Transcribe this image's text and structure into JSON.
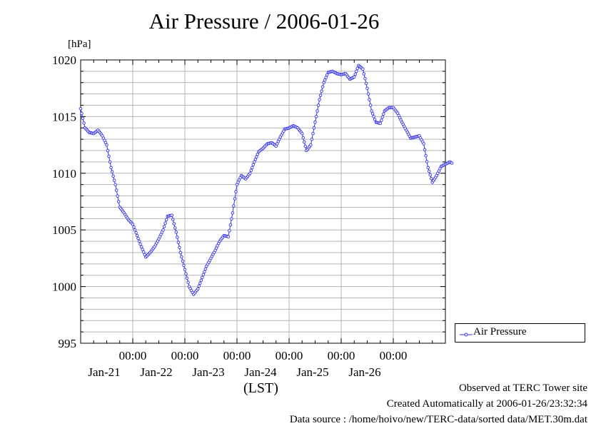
{
  "title": "Air Pressure / 2006-01-26",
  "y_unit": "[hPa]",
  "x_axis_label": "(LST)",
  "footer": {
    "line1": "Observed at TERC Tower site",
    "line2": "Created Automatically at 2006-01-26/23:32:34",
    "line3": "Data source : /home/hoivo/new/TERC-data/sorted  data/MET.30m.dat"
  },
  "legend": {
    "label": "Air Pressure"
  },
  "colors": {
    "series": "#3333ee",
    "grid": "#b4b4b4",
    "axis": "#000000"
  },
  "chart_data": {
    "type": "line",
    "title": "Air Pressure / 2006-01-26",
    "ylabel": "[hPa]",
    "xlabel": "(LST)",
    "ylim": [
      995,
      1020
    ],
    "xlim": [
      "2006-01-20 00:00",
      "2006-01-26 24:00"
    ],
    "yticks": [
      995,
      1000,
      1005,
      1010,
      1015,
      1020
    ],
    "xticks": [
      {
        "time": "00:00",
        "date": "Jan-21"
      },
      {
        "time": "00:00",
        "date": "Jan-22"
      },
      {
        "time": "00:00",
        "date": "Jan-23"
      },
      {
        "time": "00:00",
        "date": "Jan-24"
      },
      {
        "time": "00:00",
        "date": "Jan-25"
      },
      {
        "time": "00:00",
        "date": "Jan-26"
      }
    ],
    "grid": true,
    "legend_position": "right-bottom",
    "series": [
      {
        "name": "Air Pressure",
        "marker": "circle",
        "points": [
          [
            "2006-01-20 00:00",
            1015.7
          ],
          [
            "2006-01-20 02:00",
            1014.0
          ],
          [
            "2006-01-20 04:00",
            1013.6
          ],
          [
            "2006-01-20 06:00",
            1013.5
          ],
          [
            "2006-01-20 08:00",
            1013.8
          ],
          [
            "2006-01-20 10:00",
            1013.3
          ],
          [
            "2006-01-20 12:00",
            1012.5
          ],
          [
            "2006-01-20 14:00",
            1010.5
          ],
          [
            "2006-01-20 16:00",
            1009.0
          ],
          [
            "2006-01-20 18:00",
            1007.0
          ],
          [
            "2006-01-20 20:00",
            1006.5
          ],
          [
            "2006-01-20 22:00",
            1005.9
          ],
          [
            "2006-01-21 00:00",
            1005.5
          ],
          [
            "2006-01-21 02:00",
            1004.5
          ],
          [
            "2006-01-21 04:00",
            1003.5
          ],
          [
            "2006-01-21 06:00",
            1002.6
          ],
          [
            "2006-01-21 08:00",
            1003.0
          ],
          [
            "2006-01-21 10:00",
            1003.5
          ],
          [
            "2006-01-21 12:00",
            1004.2
          ],
          [
            "2006-01-21 14:00",
            1005.0
          ],
          [
            "2006-01-21 16:00",
            1006.2
          ],
          [
            "2006-01-21 18:00",
            1006.3
          ],
          [
            "2006-01-21 20:00",
            1004.8
          ],
          [
            "2006-01-21 22:00",
            1003.0
          ],
          [
            "2006-01-22 00:00",
            1001.5
          ],
          [
            "2006-01-22 02:00",
            1000.0
          ],
          [
            "2006-01-22 04:00",
            999.3
          ],
          [
            "2006-01-22 06:00",
            999.8
          ],
          [
            "2006-01-22 08:00",
            1000.8
          ],
          [
            "2006-01-22 10:00",
            1001.8
          ],
          [
            "2006-01-22 12:00",
            1002.5
          ],
          [
            "2006-01-22 14:00",
            1003.2
          ],
          [
            "2006-01-22 16:00",
            1004.0
          ],
          [
            "2006-01-22 18:00",
            1004.5
          ],
          [
            "2006-01-22 20:00",
            1004.4
          ],
          [
            "2006-01-22 22:00",
            1006.5
          ],
          [
            "2006-01-23 00:00",
            1009.0
          ],
          [
            "2006-01-23 02:00",
            1009.8
          ],
          [
            "2006-01-23 04:00",
            1009.5
          ],
          [
            "2006-01-23 06:00",
            1010.0
          ],
          [
            "2006-01-23 08:00",
            1011.0
          ],
          [
            "2006-01-23 10:00",
            1011.9
          ],
          [
            "2006-01-23 12:00",
            1012.2
          ],
          [
            "2006-01-23 14:00",
            1012.6
          ],
          [
            "2006-01-23 16:00",
            1012.7
          ],
          [
            "2006-01-23 18:00",
            1012.4
          ],
          [
            "2006-01-23 20:00",
            1013.2
          ],
          [
            "2006-01-23 22:00",
            1013.9
          ],
          [
            "2006-01-24 00:00",
            1014.0
          ],
          [
            "2006-01-24 02:00",
            1014.2
          ],
          [
            "2006-01-24 04:00",
            1014.0
          ],
          [
            "2006-01-24 06:00",
            1013.5
          ],
          [
            "2006-01-24 08:00",
            1012.0
          ],
          [
            "2006-01-24 10:00",
            1012.5
          ],
          [
            "2006-01-24 12:00",
            1014.5
          ],
          [
            "2006-01-24 14:00",
            1016.5
          ],
          [
            "2006-01-24 16:00",
            1018.0
          ],
          [
            "2006-01-24 18:00",
            1018.9
          ],
          [
            "2006-01-24 20:00",
            1019.0
          ],
          [
            "2006-01-24 22:00",
            1018.8
          ],
          [
            "2006-01-25 00:00",
            1018.7
          ],
          [
            "2006-01-25 02:00",
            1018.8
          ],
          [
            "2006-01-25 04:00",
            1018.3
          ],
          [
            "2006-01-25 06:00",
            1018.5
          ],
          [
            "2006-01-25 08:00",
            1019.5
          ],
          [
            "2006-01-25 10:00",
            1019.2
          ],
          [
            "2006-01-25 12:00",
            1017.5
          ],
          [
            "2006-01-25 14:00",
            1015.5
          ],
          [
            "2006-01-25 16:00",
            1014.5
          ],
          [
            "2006-01-25 18:00",
            1014.4
          ],
          [
            "2006-01-25 20:00",
            1015.5
          ],
          [
            "2006-01-25 22:00",
            1015.8
          ],
          [
            "2006-01-26 00:00",
            1015.8
          ],
          [
            "2006-01-26 02:00",
            1015.3
          ],
          [
            "2006-01-26 04:00",
            1014.5
          ],
          [
            "2006-01-26 06:00",
            1013.8
          ],
          [
            "2006-01-26 08:00",
            1013.1
          ],
          [
            "2006-01-26 10:00",
            1013.2
          ],
          [
            "2006-01-26 12:00",
            1013.3
          ],
          [
            "2006-01-26 14:00",
            1012.6
          ],
          [
            "2006-01-26 16:00",
            1010.5
          ],
          [
            "2006-01-26 18:00",
            1009.2
          ],
          [
            "2006-01-26 20:00",
            1009.8
          ],
          [
            "2006-01-26 22:00",
            1010.6
          ],
          [
            "2006-01-27 00:00",
            1010.8
          ],
          [
            "2006-01-27 02:00",
            1011.0
          ],
          [
            "2006-01-27 03:00",
            1010.9
          ]
        ]
      }
    ]
  }
}
